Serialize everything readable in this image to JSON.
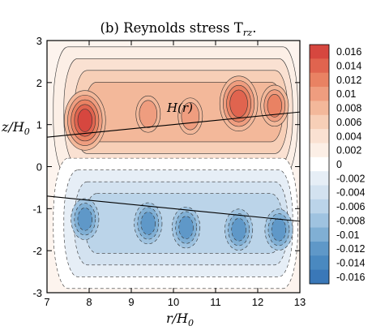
{
  "chart_data": {
    "type": "heatmap",
    "title": "(b) Reynolds stress T",
    "title_sub": "rz",
    "title_tail": ".",
    "xlabel": "r/H",
    "xlabel_sub": "0",
    "ylabel": "z/H",
    "ylabel_sub": "0",
    "xlim": [
      7,
      13
    ],
    "ylim": [
      -3,
      3
    ],
    "x_ticks": [
      7,
      8,
      9,
      10,
      11,
      12,
      13
    ],
    "y_ticks": [
      -3,
      -2,
      -1,
      0,
      1,
      2,
      3
    ],
    "annotation": "H(r)",
    "scale_height_lines": [
      {
        "x": [
          7,
          13
        ],
        "z": [
          0.7,
          1.3
        ]
      },
      {
        "x": [
          7,
          13
        ],
        "z": [
          -0.7,
          -1.3
        ]
      }
    ],
    "upper_maxima": [
      {
        "r": 7.9,
        "z": 1.1,
        "value": 0.016
      },
      {
        "r": 9.4,
        "z": 1.25,
        "value": 0.011
      },
      {
        "r": 10.4,
        "z": 1.2,
        "value": 0.011
      },
      {
        "r": 11.55,
        "z": 1.5,
        "value": 0.015
      },
      {
        "r": 12.4,
        "z": 1.45,
        "value": 0.012
      }
    ],
    "lower_minima": [
      {
        "r": 7.9,
        "z": -1.25,
        "value": -0.012
      },
      {
        "r": 9.4,
        "z": -1.35,
        "value": -0.012
      },
      {
        "r": 10.3,
        "z": -1.45,
        "value": -0.012
      },
      {
        "r": 11.55,
        "z": -1.5,
        "value": -0.012
      },
      {
        "r": 12.5,
        "z": -1.5,
        "value": -0.012
      }
    ],
    "legend": {
      "placement": "right",
      "levels": [
        "0.016",
        "0.014",
        "0.012",
        "0.01",
        "0.008",
        "0.006",
        "0.004",
        "0.002",
        "0",
        "-0.002",
        "-0.004",
        "-0.006",
        "-0.008",
        "-0.01",
        "-0.012",
        "-0.014",
        "-0.016"
      ],
      "colors": [
        "#d6473f",
        "#e0644f",
        "#e98263",
        "#ef9d7f",
        "#f3b89a",
        "#f7cfb7",
        "#fae1d2",
        "#fcefe6",
        "#ffffff",
        "#e6eef6",
        "#d3e2f0",
        "#bbd4e9",
        "#9fc3e0",
        "#80afd4",
        "#5f98c8",
        "#4a89c0",
        "#3a78b8"
      ]
    }
  }
}
